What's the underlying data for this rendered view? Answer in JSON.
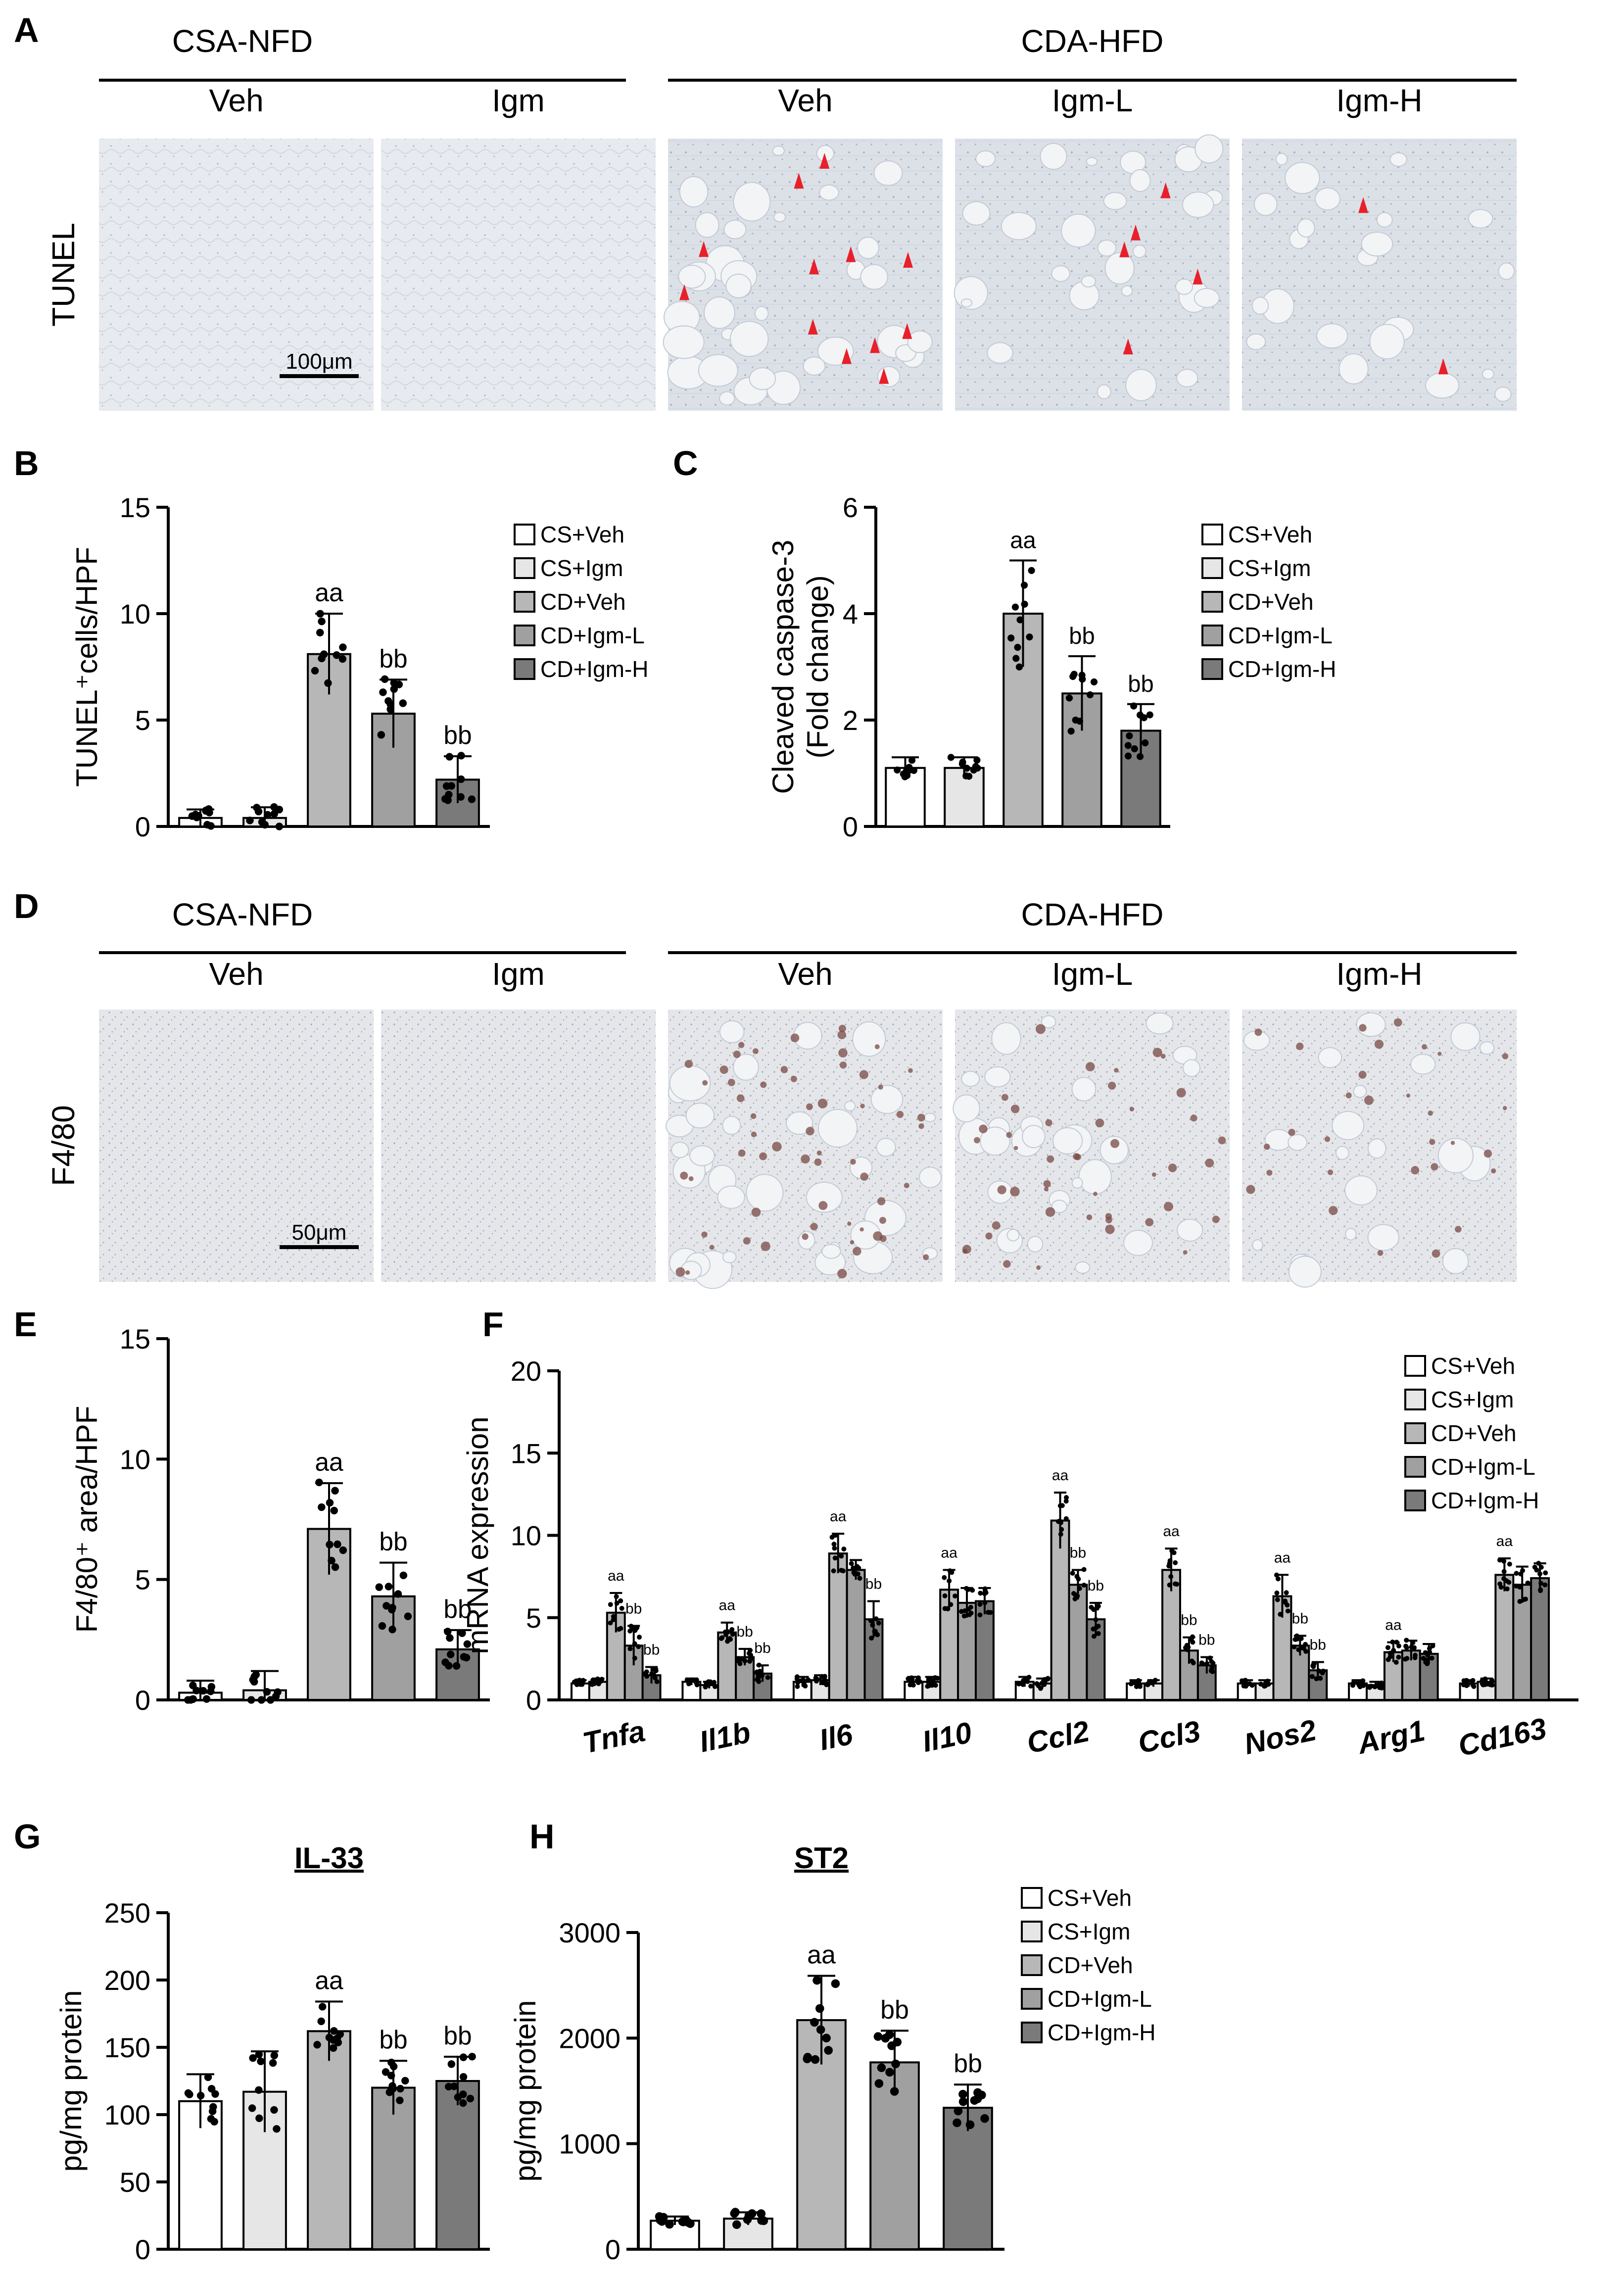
{
  "colors": {
    "CS+Veh": "#ffffff",
    "CS+Igm": "#e6e6e6",
    "CD+Veh": "#b7b7b7",
    "CD+Igm-L": "#a0a0a0",
    "CD+Igm-H": "#7a7a7a",
    "arrow": "#e8202a",
    "tissue": "#dfe3e9"
  },
  "legend": [
    "CS+Veh",
    "CS+Igm",
    "CD+Veh",
    "CD+Igm-L",
    "CD+Igm-H"
  ],
  "micro_panels": [
    {
      "letter": "A",
      "stain_label": "TUNEL",
      "group_headers": [
        "CSA-NFD",
        "CDA-HFD"
      ],
      "column_labels": [
        "Veh",
        "Igm",
        "Veh",
        "Igm-L",
        "Igm-H"
      ],
      "scale_bar": "100μm",
      "arrow_counts": [
        0,
        0,
        12,
        5,
        2
      ]
    },
    {
      "letter": "D",
      "stain_label": "F4/80",
      "group_headers": [
        "CSA-NFD",
        "CDA-HFD"
      ],
      "column_labels": [
        "Veh",
        "Igm",
        "Veh",
        "Igm-L",
        "Igm-H"
      ],
      "scale_bar": "50μm",
      "arrow_counts": [
        0,
        0,
        0,
        0,
        0
      ]
    }
  ],
  "chart_data": [
    {
      "panel": "B",
      "type": "bar",
      "title": "",
      "ylabel": "TUNEL⁺cells/HPF",
      "ylim": [
        0,
        15
      ],
      "yticks": [
        0,
        5,
        10,
        15
      ],
      "categories": [
        "CS+Veh",
        "CS+Igm",
        "CD+Veh",
        "CD+Igm-L",
        "CD+Igm-H"
      ],
      "values": [
        0.4,
        0.4,
        8.1,
        5.3,
        2.2
      ],
      "errors": [
        0.4,
        0.5,
        1.9,
        1.6,
        1.1
      ],
      "annotations": [
        "",
        "",
        "aa",
        "bb",
        "bb"
      ],
      "legend": "right"
    },
    {
      "panel": "C",
      "type": "bar",
      "title": "",
      "ylabel": "Cleaved caspase-3",
      "ylabel2": "(Fold change)",
      "ylim": [
        0,
        6
      ],
      "yticks": [
        0,
        2,
        4,
        6
      ],
      "categories": [
        "CS+Veh",
        "CS+Igm",
        "CD+Veh",
        "CD+Igm-L",
        "CD+Igm-H"
      ],
      "values": [
        1.1,
        1.1,
        4.0,
        2.5,
        1.8
      ],
      "errors": [
        0.2,
        0.2,
        1.0,
        0.7,
        0.5
      ],
      "annotations": [
        "",
        "",
        "aa",
        "bb",
        "bb"
      ],
      "legend": "right"
    },
    {
      "panel": "E",
      "type": "bar",
      "title": "",
      "ylabel": "F4/80⁺ area/HPF",
      "ylim": [
        0,
        15
      ],
      "yticks": [
        0,
        5,
        10,
        15
      ],
      "categories": [
        "CS+Veh",
        "CS+Igm",
        "CD+Veh",
        "CD+Igm-L",
        "CD+Igm-H"
      ],
      "values": [
        0.3,
        0.4,
        7.1,
        4.3,
        2.1
      ],
      "errors": [
        0.5,
        0.8,
        1.9,
        1.4,
        0.8
      ],
      "annotations": [
        "",
        "",
        "aa",
        "bb",
        "bb"
      ]
    },
    {
      "panel": "F",
      "type": "bar",
      "title": "",
      "ylabel": "mRNA expression",
      "ylim": [
        0,
        20
      ],
      "yticks": [
        0,
        5,
        10,
        15,
        20
      ],
      "categories": [
        "Tnfa",
        "Il1b",
        "Il6",
        "Il10",
        "Ccl2",
        "Ccl3",
        "Nos2",
        "Arg1",
        "Cd163"
      ],
      "series": [
        {
          "name": "CS+Veh",
          "values": [
            1.0,
            1.1,
            1.1,
            1.1,
            1.1,
            1.0,
            1.0,
            1.0,
            1.0
          ]
        },
        {
          "name": "CS+Igm",
          "values": [
            1.1,
            0.9,
            1.2,
            1.1,
            1.0,
            1.0,
            1.0,
            0.9,
            1.1
          ]
        },
        {
          "name": "CD+Veh",
          "values": [
            5.3,
            4.1,
            8.9,
            6.7,
            10.9,
            7.9,
            6.3,
            2.9,
            7.6
          ]
        },
        {
          "name": "CD+Igm-L",
          "values": [
            3.3,
            2.6,
            7.9,
            5.9,
            7.0,
            3.0,
            3.3,
            3.0,
            7.0
          ]
        },
        {
          "name": "CD+Igm-H",
          "values": [
            1.5,
            1.6,
            4.9,
            6.0,
            4.9,
            2.1,
            1.8,
            2.8,
            7.4
          ]
        }
      ],
      "errors": [
        [
          0.2,
          0.2,
          0.3,
          0.3,
          0.3,
          0.2,
          0.2,
          0.2,
          0.2
        ],
        [
          0.2,
          0.2,
          0.3,
          0.3,
          0.3,
          0.2,
          0.2,
          0.2,
          0.2
        ],
        [
          1.2,
          0.6,
          1.2,
          1.2,
          1.7,
          1.3,
          1.3,
          0.6,
          1.0
        ],
        [
          1.2,
          0.5,
          0.6,
          0.9,
          0.9,
          0.8,
          0.6,
          0.6,
          1.1
        ],
        [
          0.5,
          0.5,
          1.1,
          0.8,
          1.0,
          0.5,
          0.5,
          0.6,
          0.9
        ]
      ],
      "annotations": [
        [
          "",
          "",
          "aa",
          "bb",
          "bb"
        ],
        [
          "",
          "",
          "aa",
          "bb",
          "bb"
        ],
        [
          "",
          "",
          "aa",
          "",
          "bb"
        ],
        [
          "",
          "",
          "aa",
          "",
          ""
        ],
        [
          "",
          "",
          "aa",
          "bb",
          "bb"
        ],
        [
          "",
          "",
          "aa",
          "bb",
          "bb"
        ],
        [
          "",
          "",
          "aa",
          "bb",
          "bb"
        ],
        [
          "",
          "",
          "aa",
          "",
          ""
        ],
        [
          "",
          "",
          "aa",
          "",
          ""
        ]
      ],
      "legend": "top-right"
    },
    {
      "panel": "G",
      "type": "bar",
      "title": "IL-33",
      "ylabel": "pg/mg protein",
      "ylim": [
        0,
        250
      ],
      "yticks": [
        0,
        50,
        100,
        150,
        200,
        250
      ],
      "categories": [
        "CS+Veh",
        "CS+Igm",
        "CD+Veh",
        "CD+Igm-L",
        "CD+Igm-H"
      ],
      "values": [
        110,
        117,
        162,
        120,
        125
      ],
      "errors": [
        20,
        30,
        22,
        20,
        18
      ],
      "annotations": [
        "",
        "",
        "aa",
        "bb",
        "bb"
      ]
    },
    {
      "panel": "H",
      "type": "bar",
      "title": "ST2",
      "ylabel": "pg/mg protein",
      "ylim": [
        0,
        3000
      ],
      "yticks": [
        0,
        1000,
        2000,
        3000
      ],
      "categories": [
        "CS+Veh",
        "CS+Igm",
        "CD+Veh",
        "CD+Igm-L",
        "CD+Igm-H"
      ],
      "values": [
        270,
        290,
        2170,
        1770,
        1340
      ],
      "errors": [
        40,
        60,
        420,
        300,
        220
      ],
      "annotations": [
        "",
        "",
        "aa",
        "bb",
        "bb"
      ],
      "legend": "right"
    }
  ]
}
